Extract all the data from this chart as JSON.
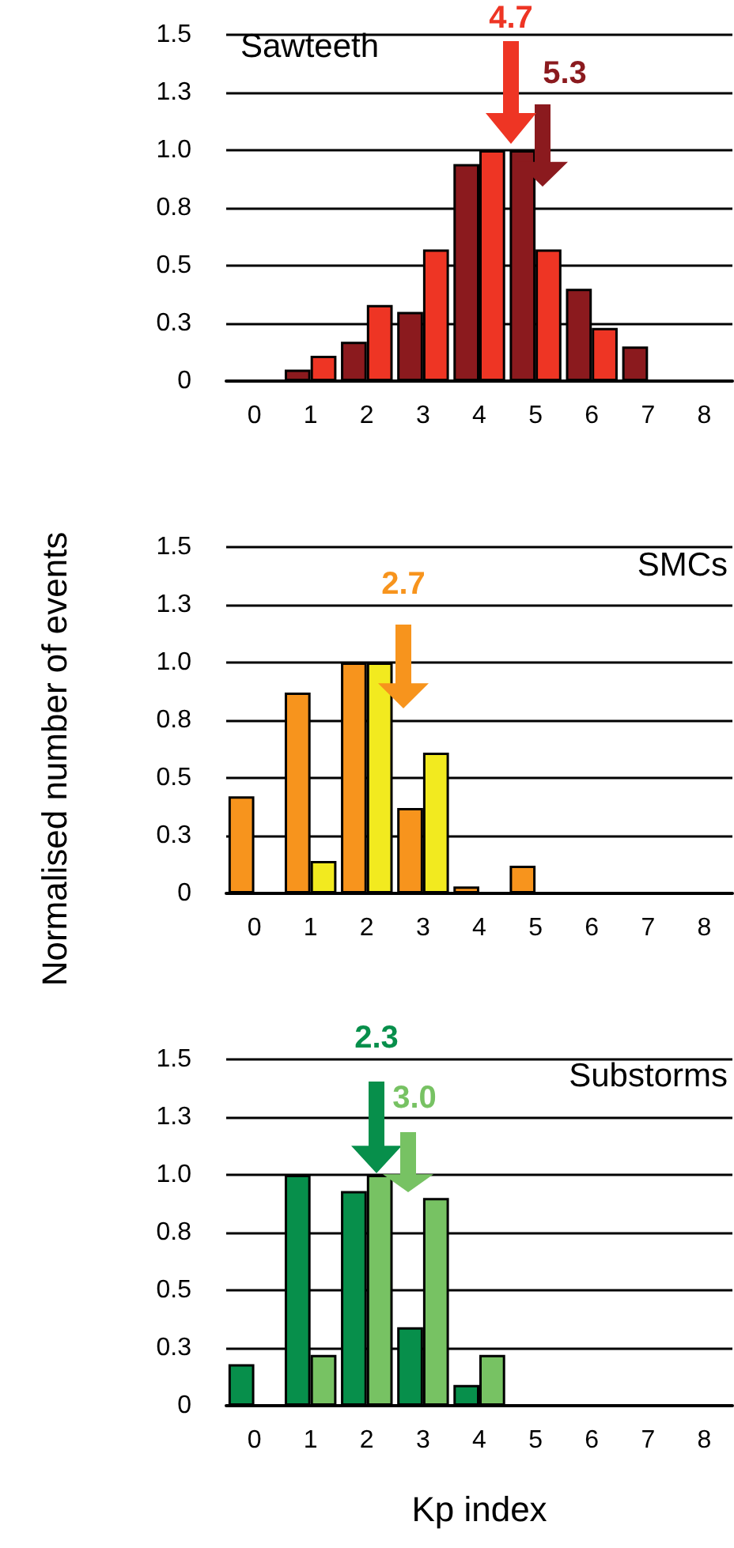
{
  "chart_data": [
    {
      "type": "bar",
      "title": "Sawteeth",
      "categories": [
        "0",
        "1",
        "2",
        "3",
        "4",
        "5",
        "6",
        "7",
        "8"
      ],
      "series": [
        {
          "color": "#8b1a1e",
          "values": [
            null,
            0.05,
            0.17,
            0.3,
            0.94,
            1.0,
            0.4,
            0.15,
            null
          ]
        },
        {
          "color": "#ee3524",
          "values": [
            null,
            0.11,
            0.33,
            0.57,
            1.0,
            0.57,
            0.23,
            null,
            null
          ]
        }
      ],
      "annotations": [
        "5.3",
        "4.7"
      ],
      "ylim": [
        0,
        1.5
      ],
      "yticks": [
        0,
        {
          "value": 0.25,
          "label": "0.3"
        },
        0.5,
        {
          "value": 0.75,
          "label": "0.8"
        },
        {
          "value": 1,
          "label": "1.0"
        },
        {
          "value": 1.25,
          "label": "1.3"
        },
        1.5
      ],
      "grid": "y"
    },
    {
      "type": "bar",
      "title": "SMCs",
      "ylabel": "Normalised number of events",
      "categories": [
        "0",
        "1",
        "2",
        "3",
        "4",
        "5",
        "6",
        "7",
        "8"
      ],
      "series": [
        {
          "color": "#f7941d",
          "values": [
            0.42,
            0.87,
            1.0,
            0.37,
            0.03,
            0.12,
            null,
            null,
            null
          ]
        },
        {
          "color": "#f2ea1f",
          "values": [
            null,
            0.14,
            1.0,
            0.61,
            null,
            null,
            null,
            null,
            null
          ]
        }
      ],
      "annotations": [
        "2.7"
      ],
      "ylim": [
        0,
        1.5
      ],
      "yticks": [
        0,
        {
          "value": 0.25,
          "label": "0.3"
        },
        0.5,
        {
          "value": 0.75,
          "label": "0.8"
        },
        {
          "value": 1,
          "label": "1.0"
        },
        {
          "value": 1.25,
          "label": "1.3"
        },
        1.5
      ],
      "grid": "y"
    },
    {
      "type": "bar",
      "title": "Substorms",
      "xlabel": "Kp index",
      "categories": [
        "0",
        "1",
        "2",
        "3",
        "4",
        "5",
        "6",
        "7",
        "8"
      ],
      "series": [
        {
          "color": "#078f4b",
          "values": [
            0.18,
            1.0,
            0.93,
            0.34,
            0.09,
            null,
            null,
            null,
            null
          ]
        },
        {
          "color": "#77c263",
          "values": [
            null,
            0.22,
            1.0,
            0.9,
            0.22,
            null,
            null,
            null,
            null
          ]
        }
      ],
      "annotations": [
        "2.3",
        "3.0"
      ],
      "ylim": [
        0,
        1.5
      ],
      "yticks": [
        0,
        {
          "value": 0.25,
          "label": "0.3"
        },
        0.5,
        {
          "value": 0.75,
          "label": "0.8"
        },
        {
          "value": 1,
          "label": "1.0"
        },
        {
          "value": 1.25,
          "label": "1.3"
        },
        1.5
      ],
      "grid": "y"
    }
  ]
}
